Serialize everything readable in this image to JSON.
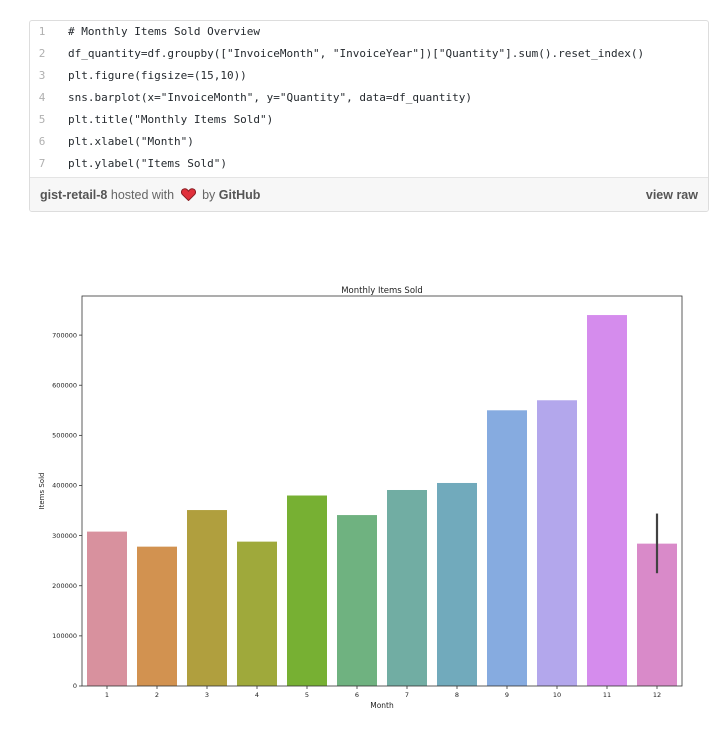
{
  "gist": {
    "lines": [
      {
        "number": "1",
        "code": "# Monthly Items Sold Overview"
      },
      {
        "number": "2",
        "code": "df_quantity=df.groupby([\"InvoiceMonth\", \"InvoiceYear\"])[\"Quantity\"].sum().reset_index()"
      },
      {
        "number": "3",
        "code": "plt.figure(figsize=(15,10))"
      },
      {
        "number": "4",
        "code": "sns.barplot(x=\"InvoiceMonth\", y=\"Quantity\", data=df_quantity)"
      },
      {
        "number": "5",
        "code": "plt.title(\"Monthly Items Sold\")"
      },
      {
        "number": "6",
        "code": "plt.xlabel(\"Month\")"
      },
      {
        "number": "7",
        "code": "plt.ylabel(\"Items Sold\")"
      }
    ],
    "file_link": "gist-retail-8",
    "hosted_text": "hosted with",
    "heart_icon": "heart-icon",
    "by_text": "by",
    "github_link": "GitHub",
    "view_raw": "view raw",
    "heart_color": "#e0303b"
  },
  "chart_data": {
    "type": "bar",
    "title": "Monthly Items Sold",
    "xlabel": "Month",
    "ylabel": "Items Sold",
    "categories": [
      "1",
      "2",
      "3",
      "4",
      "5",
      "6",
      "7",
      "8",
      "9",
      "10",
      "11",
      "12"
    ],
    "values": [
      308000,
      278000,
      351000,
      288000,
      380000,
      341000,
      391000,
      405000,
      550000,
      570000,
      740000,
      284000
    ],
    "colors": [
      "#d8919e",
      "#d29250",
      "#b09f3e",
      "#9fa93b",
      "#77b033",
      "#6fb280",
      "#71ada3",
      "#71aabc",
      "#86abe0",
      "#b3a7ec",
      "#d58ced",
      "#d98ac9"
    ],
    "error_bars": [
      null,
      null,
      null,
      null,
      null,
      null,
      null,
      null,
      null,
      null,
      null,
      [
        225000,
        344000
      ]
    ],
    "yticks": [
      0,
      100000,
      200000,
      300000,
      400000,
      500000,
      600000,
      700000
    ],
    "ylim": [
      0,
      778000
    ],
    "grid": false
  }
}
